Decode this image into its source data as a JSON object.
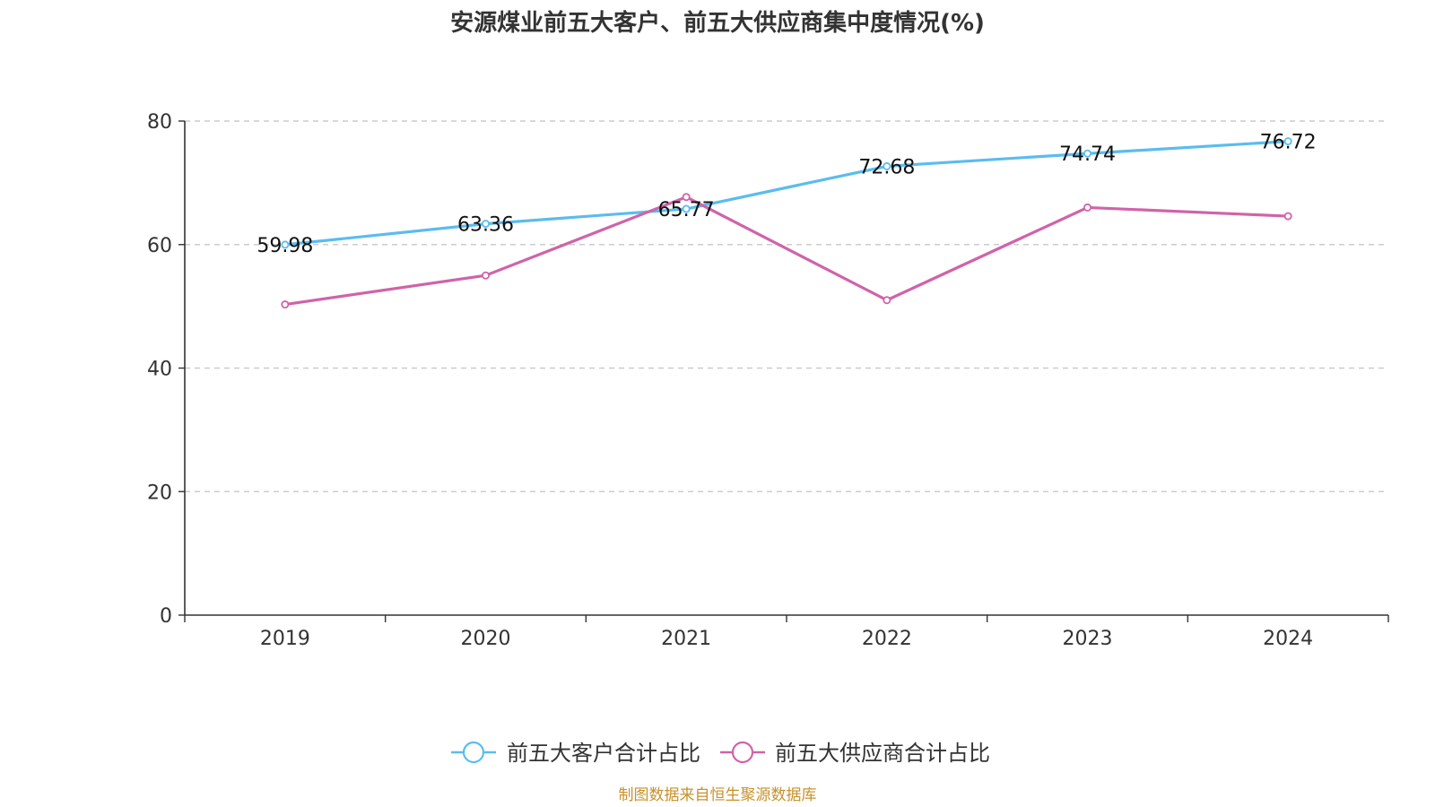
{
  "chart_data": {
    "type": "line",
    "title": "安源煤业前五大客户、前五大供应商集中度情况(%)",
    "categories": [
      "2019",
      "2020",
      "2021",
      "2022",
      "2023",
      "2024"
    ],
    "ylim": [
      0,
      80
    ],
    "yticks": [
      "0",
      "20",
      "40",
      "60",
      "80"
    ],
    "grid": true,
    "legend_position": "bottom-center",
    "series": [
      {
        "name": "前五大客户合计占比",
        "color": "#5bbcee",
        "values": [
          59.98,
          63.36,
          65.77,
          72.68,
          74.74,
          76.72
        ],
        "labels": [
          "59.98",
          "63.36",
          "65.77",
          "72.68",
          "74.74",
          "76.72"
        ]
      },
      {
        "name": "前五大供应商合计占比",
        "color": "#d063a9",
        "values": [
          50.3,
          55.0,
          67.7,
          51.0,
          66.0,
          64.6
        ]
      }
    ]
  },
  "footer": {
    "source": "制图数据来自恒生聚源数据库",
    "source_color": "#c8912a"
  }
}
